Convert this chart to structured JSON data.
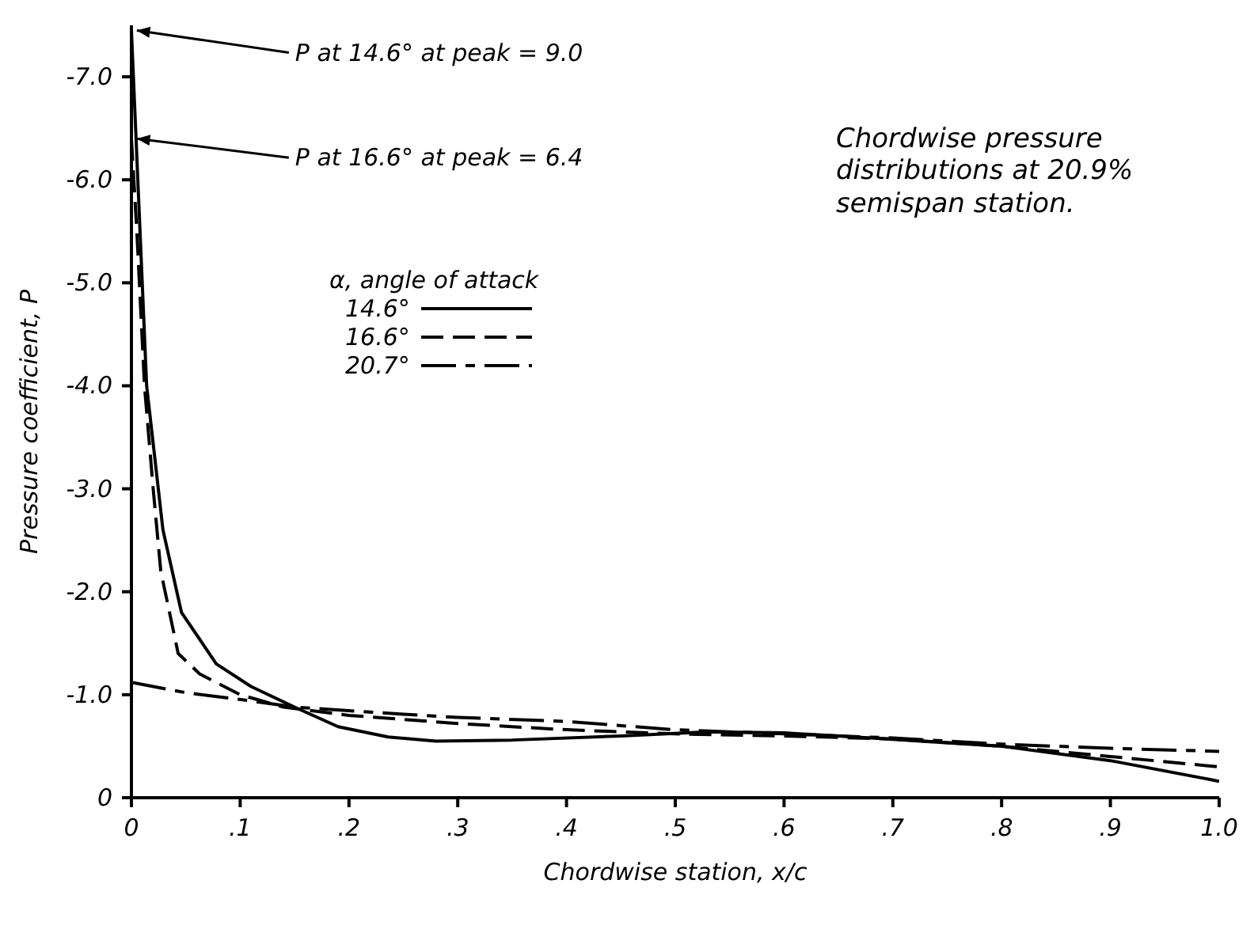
{
  "chart_data": {
    "type": "line",
    "title": "Chordwise pressure distributions at 20.9% semispan station.",
    "xlabel": "Chordwise station, x/c",
    "ylabel": "Pressure coefficient, P",
    "legend_title": "α, angle of attack",
    "legend": "top left",
    "grid": false,
    "marker": "none",
    "xlim": [
      0,
      1.0
    ],
    "xticks": [
      0,
      {
        "value": 0.1,
        "label": ".1"
      },
      {
        "value": 0.2,
        "label": ".2"
      },
      {
        "value": 0.3,
        "label": ".3"
      },
      {
        "value": 0.4,
        "label": ".4"
      },
      {
        "value": 0.5,
        "label": ".5"
      },
      {
        "value": 0.6,
        "label": ".6"
      },
      {
        "value": 0.7,
        "label": ".7"
      },
      {
        "value": 0.8,
        "label": ".8"
      },
      {
        "value": 0.9,
        "label": ".9"
      },
      {
        "value": 1.0,
        "label": "1.0"
      }
    ],
    "ylim": [
      0,
      -7.5
    ],
    "yticks": [
      0,
      {
        "value": -1,
        "label": "-1.0"
      },
      {
        "value": -2,
        "label": "-2.0"
      },
      {
        "value": -3,
        "label": "-3.0"
      },
      {
        "value": -4,
        "label": "-4.0"
      },
      {
        "value": -5,
        "label": "-5.0"
      },
      {
        "value": -6,
        "label": "-6.0"
      },
      {
        "value": -7,
        "label": "-7.0"
      }
    ],
    "annotations": [
      {
        "text": "P at 14.6° at peak = 9.0",
        "x": 0.005,
        "y": -7.45
      },
      {
        "text": "P at 16.6° at peak = 6.4",
        "x": 0.005,
        "y": -6.4
      }
    ],
    "series": [
      {
        "name": "14.6°",
        "color": "#000000",
        "line_style": "solid",
        "x": [
          0,
          0.014,
          0.029,
          0.046,
          0.078,
          0.11,
          0.15,
          0.19,
          0.236,
          0.28,
          0.35,
          0.45,
          0.53,
          0.6,
          0.68,
          0.8,
          0.9,
          1.0
        ],
        "values": [
          -7.45,
          -4.0,
          -2.6,
          -1.8,
          -1.3,
          -1.08,
          -0.88,
          -0.69,
          -0.59,
          -0.55,
          -0.56,
          -0.6,
          -0.64,
          -0.63,
          -0.58,
          -0.5,
          -0.36,
          -0.16
        ]
      },
      {
        "name": "16.6°",
        "color": "#000000",
        "line_style": "dashed",
        "x": [
          0,
          0.005,
          0.012,
          0.02,
          0.027,
          0.043,
          0.063,
          0.1,
          0.14,
          0.2,
          0.3,
          0.4,
          0.5,
          0.6,
          0.7,
          0.8,
          0.9,
          1.0
        ],
        "values": [
          -6.4,
          -5.5,
          -4.0,
          -3.0,
          -2.2,
          -1.4,
          -1.2,
          -1.0,
          -0.88,
          -0.8,
          -0.72,
          -0.66,
          -0.62,
          -0.6,
          -0.57,
          -0.5,
          -0.4,
          -0.3
        ]
      },
      {
        "name": "20.7°",
        "color": "#000000",
        "line_style": "dashed",
        "x": [
          0,
          0.05,
          0.11,
          0.15,
          0.25,
          0.3,
          0.4,
          0.5,
          0.6,
          0.7,
          0.8,
          0.9,
          1.0
        ],
        "values": [
          -1.12,
          -1.02,
          -0.94,
          -0.88,
          -0.81,
          -0.78,
          -0.74,
          -0.66,
          -0.62,
          -0.58,
          -0.52,
          -0.48,
          -0.45
        ]
      }
    ]
  }
}
